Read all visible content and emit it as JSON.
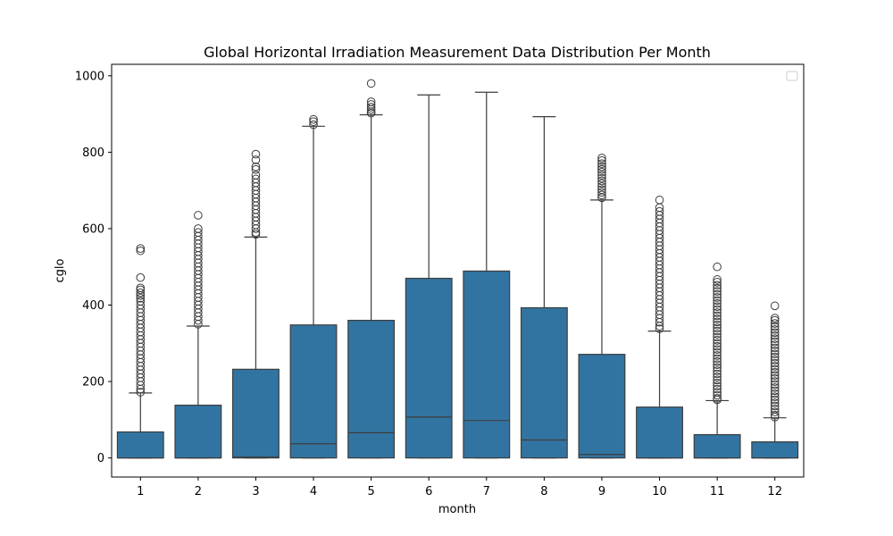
{
  "chart_data": {
    "type": "box",
    "title": "Global Horizontal Irradiation Measurement Data Distribution Per Month",
    "xlabel": "month",
    "ylabel": "cglo",
    "categories": [
      "1",
      "2",
      "3",
      "4",
      "5",
      "6",
      "7",
      "8",
      "9",
      "10",
      "11",
      "12"
    ],
    "yticks": [
      0,
      200,
      400,
      600,
      800,
      1000
    ],
    "ylim": [
      -50,
      1030
    ],
    "legend": "top-right",
    "grid": false,
    "box_color": "#3274a1",
    "edge_color": "#3d3d3d",
    "boxes": [
      {
        "month": "1",
        "min": 0,
        "q1": 0,
        "median": 0,
        "q3": 68,
        "whisker_high": 170,
        "outliers": [
          548,
          542,
          472,
          445,
          440,
          432,
          425,
          418,
          410,
          400,
          390,
          380,
          370,
          360,
          350,
          340,
          330,
          320,
          310,
          300,
          290,
          280,
          270,
          260,
          250,
          240,
          230,
          220,
          210,
          200,
          190,
          180,
          172
        ]
      },
      {
        "month": "2",
        "min": 0,
        "q1": 0,
        "median": 0,
        "q3": 138,
        "whisker_high": 345,
        "outliers": [
          635,
          600,
          590,
          580,
          570,
          560,
          550,
          540,
          530,
          520,
          510,
          500,
          490,
          480,
          470,
          460,
          450,
          440,
          430,
          420,
          410,
          400,
          390,
          380,
          370,
          360,
          350
        ]
      },
      {
        "month": "3",
        "min": 0,
        "q1": 0,
        "median": 2,
        "q3": 232,
        "whisker_high": 578,
        "outliers": [
          795,
          780,
          762,
          755,
          740,
          730,
          720,
          710,
          700,
          690,
          680,
          670,
          660,
          650,
          640,
          630,
          620,
          610,
          600,
          590,
          585
        ]
      },
      {
        "month": "4",
        "min": 0,
        "q1": 0,
        "median": 37,
        "q3": 348,
        "whisker_high": 868,
        "outliers": [
          886,
          880,
          872
        ]
      },
      {
        "month": "5",
        "min": 0,
        "q1": 0,
        "median": 66,
        "q3": 360,
        "whisker_high": 898,
        "outliers": [
          980,
          932,
          925,
          918,
          912,
          906,
          902
        ]
      },
      {
        "month": "6",
        "min": 0,
        "q1": 0,
        "median": 107,
        "q3": 470,
        "whisker_high": 950,
        "outliers": []
      },
      {
        "month": "7",
        "min": 0,
        "q1": 0,
        "median": 98,
        "q3": 489,
        "whisker_high": 957,
        "outliers": []
      },
      {
        "month": "8",
        "min": 0,
        "q1": 0,
        "median": 47,
        "q3": 393,
        "whisker_high": 893,
        "outliers": []
      },
      {
        "month": "9",
        "min": 0,
        "q1": 0,
        "median": 9,
        "q3": 271,
        "whisker_high": 675,
        "outliers": [
          785,
          778,
          770,
          762,
          755,
          748,
          740,
          732,
          725,
          718,
          710,
          702,
          695,
          688,
          681
        ]
      },
      {
        "month": "10",
        "min": 0,
        "q1": 0,
        "median": 0,
        "q3": 133,
        "whisker_high": 332,
        "outliers": [
          675,
          655,
          645,
          635,
          625,
          615,
          605,
          595,
          585,
          575,
          565,
          555,
          545,
          535,
          525,
          515,
          505,
          495,
          485,
          475,
          465,
          455,
          445,
          435,
          425,
          415,
          405,
          395,
          385,
          375,
          365,
          355,
          345,
          338
        ]
      },
      {
        "month": "11",
        "min": 0,
        "q1": 0,
        "median": 0,
        "q3": 61,
        "whisker_high": 150,
        "outliers": [
          500,
          467,
          460,
          452,
          444,
          436,
          428,
          420,
          412,
          404,
          396,
          388,
          380,
          372,
          364,
          356,
          348,
          340,
          332,
          324,
          316,
          308,
          300,
          292,
          284,
          276,
          268,
          260,
          252,
          244,
          236,
          228,
          220,
          212,
          204,
          196,
          188,
          180,
          172,
          164,
          156,
          152
        ]
      },
      {
        "month": "12",
        "min": 0,
        "q1": 0,
        "median": 0,
        "q3": 42,
        "whisker_high": 105,
        "outliers": [
          398,
          366,
          360,
          352,
          344,
          336,
          328,
          320,
          312,
          304,
          296,
          288,
          280,
          272,
          264,
          256,
          248,
          240,
          232,
          224,
          216,
          208,
          200,
          192,
          184,
          176,
          168,
          160,
          152,
          144,
          136,
          128,
          120,
          112,
          107
        ]
      }
    ]
  }
}
